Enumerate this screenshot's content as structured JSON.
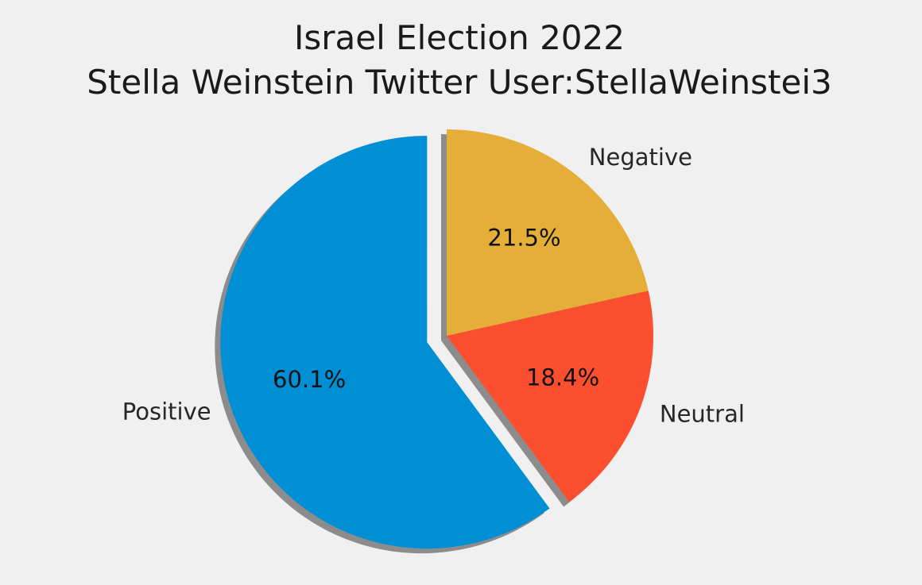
{
  "chart_data": {
    "type": "pie",
    "title": "Israel Election 2022",
    "subtitle": "Stella Weinstein Twitter User:StellaWeinstei3",
    "categories": [
      "Positive",
      "Neutral",
      "Negative"
    ],
    "values": [
      60.1,
      18.4,
      21.5
    ],
    "value_labels": [
      "60.1%",
      "18.4%",
      "21.5%"
    ],
    "colors": [
      "#008fd5",
      "#fc4f30",
      "#e5ae38"
    ],
    "explode": [
      0.1,
      0,
      0
    ],
    "start_angle_deg": 90,
    "shadow": true,
    "legend": "none"
  }
}
